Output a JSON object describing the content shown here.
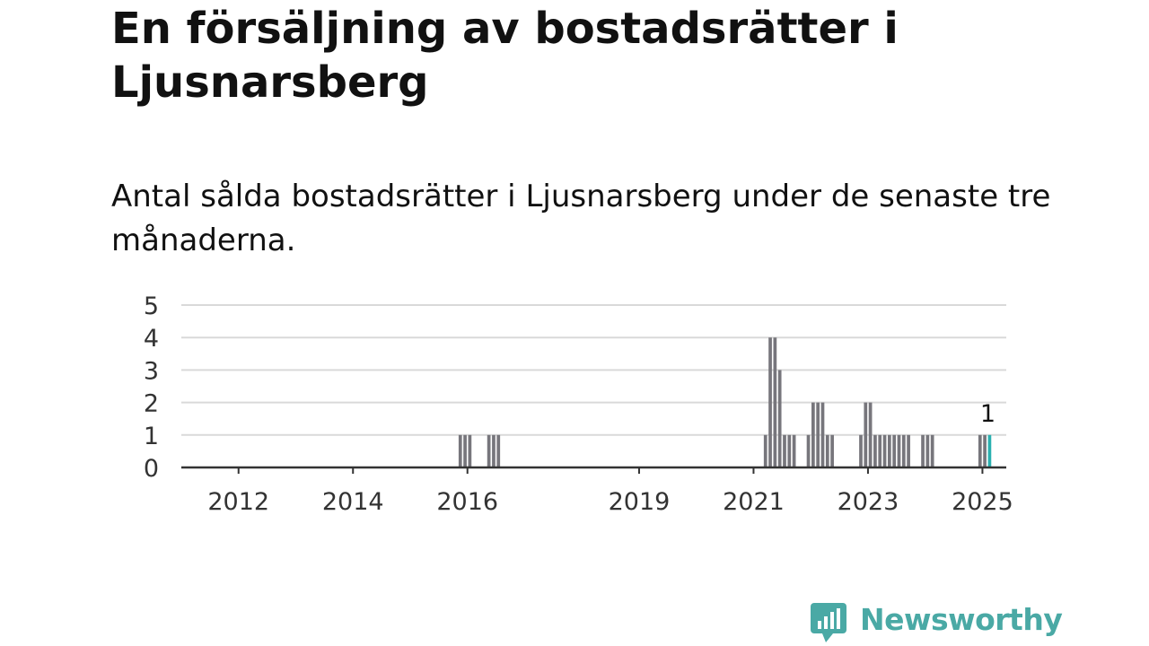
{
  "title": "En försäljning av bostadsrätter i Ljusnarsberg",
  "subtitle": "Antal sålda bostadsrätter i Ljusnarsberg under de senaste tre månaderna.",
  "brand": {
    "name": "Newsworthy",
    "color": "#4aa9a5",
    "icon": "chart-bubble-icon"
  },
  "colors": {
    "bar": "#77767c",
    "highlight": "#2bb0b0",
    "grid": "#d9d9d9",
    "axis": "#333333"
  },
  "chart_data": {
    "type": "bar",
    "title": "",
    "xlabel": "",
    "ylabel": "",
    "ylim": [
      0,
      5
    ],
    "yticks": [
      0,
      1,
      2,
      3,
      4,
      5
    ],
    "xlim": [
      "2011-01",
      "2025-06"
    ],
    "xticks": [
      "2012",
      "2014",
      "2016",
      "2019",
      "2021",
      "2023",
      "2025"
    ],
    "grid": true,
    "highlight_label": "1",
    "series": [
      {
        "x": [
          "2015-11",
          "2015-12",
          "2016-01",
          "2016-05",
          "2016-06",
          "2016-07",
          "2021-03",
          "2021-04",
          "2021-05",
          "2021-06",
          "2021-07",
          "2021-08",
          "2021-09",
          "2021-10",
          "2021-12",
          "2022-01",
          "2022-02",
          "2022-03",
          "2022-04",
          "2022-05",
          "2022-11",
          "2022-12",
          "2023-01",
          "2023-02",
          "2023-03",
          "2023-04",
          "2023-05",
          "2023-06",
          "2023-07",
          "2023-08",
          "2023-09",
          "2023-12",
          "2024-01",
          "2024-02",
          "2024-12",
          "2025-01",
          "2025-02"
        ],
        "values": [
          1,
          1,
          1,
          1,
          1,
          1,
          1,
          4,
          4,
          3,
          1,
          1,
          1,
          0,
          1,
          2,
          2,
          2,
          1,
          1,
          1,
          2,
          2,
          1,
          1,
          1,
          1,
          1,
          1,
          1,
          1,
          1,
          1,
          1,
          1,
          1,
          1
        ]
      }
    ],
    "highlight_x": "2025-02"
  }
}
